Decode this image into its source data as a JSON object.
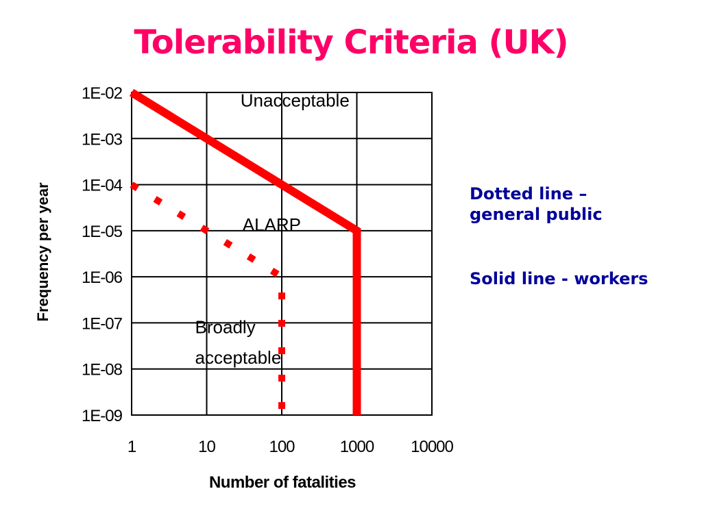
{
  "slide": {
    "title": "Tolerability Criteria (UK)",
    "notes": [
      "Dotted line –",
      "general public",
      "Solid line - workers"
    ]
  },
  "colors": {
    "title": "#ff0066",
    "notes": "#000099",
    "criteria_lines": "#ff0000",
    "grid": "#000000"
  },
  "chart_data": {
    "type": "line",
    "xlabel": "Number of fatalities",
    "ylabel": "Frequency  per year",
    "x_scale": "log",
    "y_scale": "log",
    "xlim": [
      1,
      10000
    ],
    "ylim": [
      1e-09,
      0.01
    ],
    "x_ticks": [
      1,
      10,
      100,
      1000,
      10000
    ],
    "x_tick_labels": [
      "1",
      "10",
      "100",
      "1000",
      "10000"
    ],
    "y_ticks": [
      0.01,
      0.001,
      0.0001,
      1e-05,
      1e-06,
      1e-07,
      1e-08,
      1e-09
    ],
    "y_tick_labels": [
      "1E-02",
      "1E-03",
      "1E-04",
      "1E-05",
      "1E-06",
      "1E-07",
      "1E-08",
      "1E-09"
    ],
    "grid": true,
    "series": [
      {
        "style": "solid",
        "points": [
          {
            "x": 1,
            "y": 0.01
          },
          {
            "x": 1000,
            "y": 1e-05
          },
          {
            "x": 1000,
            "y": 1e-09
          }
        ]
      },
      {
        "style": "dotted",
        "points": [
          {
            "x": 1,
            "y": 0.0001
          },
          {
            "x": 100,
            "y": 1e-06
          },
          {
            "x": 100,
            "y": 1e-09
          }
        ]
      }
    ],
    "annotations": [
      {
        "text": "Unacceptable",
        "x": 150,
        "y": 0.005
      },
      {
        "text": "ALARP",
        "x": 30,
        "y": 1e-05
      },
      {
        "text": "Broadly",
        "x": 7,
        "y": 6e-08
      },
      {
        "text": "acceptable",
        "x": 7,
        "y": 1.3e-08
      }
    ]
  }
}
